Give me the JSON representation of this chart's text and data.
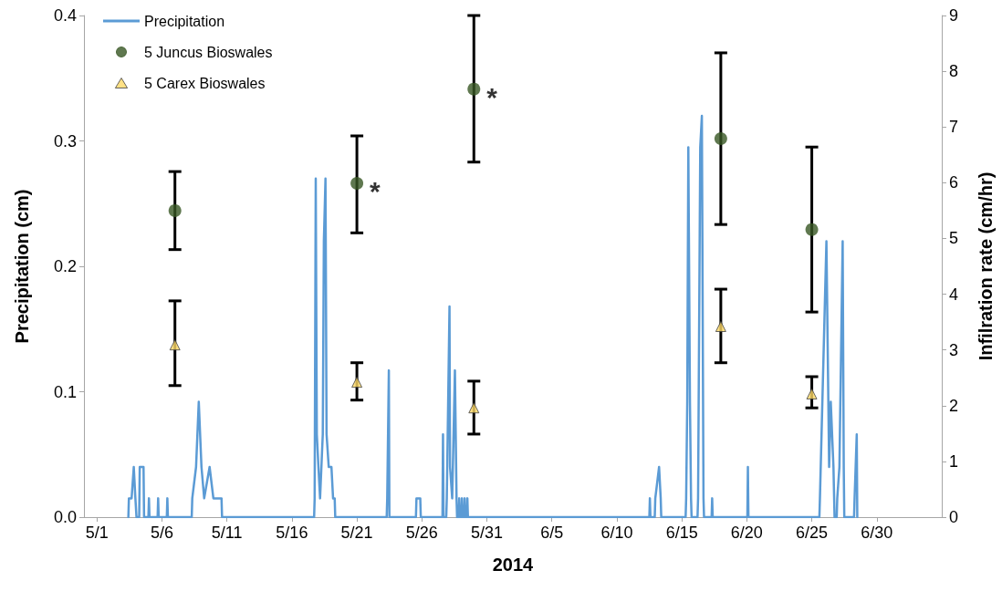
{
  "chart_data": {
    "type": "line",
    "xlabel": "2014",
    "ylabel": "Precipitation (cm)",
    "y2label": "Infilration rate (cm/hr)",
    "xlim": [
      "2014-04-30",
      "2014-07-05"
    ],
    "xticks": [
      {
        "value": "2014-05-01",
        "label": "5/1"
      },
      {
        "value": "2014-05-06",
        "label": "5/6"
      },
      {
        "value": "2014-05-11",
        "label": "5/11"
      },
      {
        "value": "2014-05-16",
        "label": "5/16"
      },
      {
        "value": "2014-05-21",
        "label": "5/21"
      },
      {
        "value": "2014-05-26",
        "label": "5/26"
      },
      {
        "value": "2014-05-31",
        "label": "5/31"
      },
      {
        "value": "2014-06-05",
        "label": "6/5"
      },
      {
        "value": "2014-06-10",
        "label": "6/10"
      },
      {
        "value": "2014-06-15",
        "label": "6/15"
      },
      {
        "value": "2014-06-20",
        "label": "6/20"
      },
      {
        "value": "2014-06-25",
        "label": "6/25"
      },
      {
        "value": "2014-06-30",
        "label": "6/30"
      }
    ],
    "ylim": [
      0,
      0.4
    ],
    "yticks": [
      {
        "value": 0,
        "label": "0.0"
      },
      0.1,
      0.2,
      0.3,
      0.4
    ],
    "y2lim": [
      0,
      9
    ],
    "y2ticks": [
      0,
      1,
      2,
      3,
      4,
      5,
      6,
      7,
      8,
      9
    ],
    "grid": false,
    "legend": "top left",
    "series": [
      {
        "name": "Precipitation",
        "color": "#5b9bd5",
        "marker": "none",
        "line_style": "solid",
        "x": [
          "2014-05-03T10:00",
          "2014-05-03T11:00",
          "2014-05-03T16:00",
          "2014-05-03T20:00",
          "2014-05-03T23:00",
          "2014-05-04T01:00",
          "2014-05-04T06:00",
          "2014-05-04T07:00",
          "2014-05-04T14:00",
          "2014-05-04T15:00",
          "2014-05-04T23:00",
          "2014-05-05T00:00",
          "2014-05-05T01:00",
          "2014-05-05T16:00",
          "2014-05-05T17:00",
          "2014-05-05T18:00",
          "2014-05-06T09:00",
          "2014-05-06T10:00",
          "2014-05-06T11:00",
          "2014-05-08T07:00",
          "2014-05-08T08:00",
          "2014-05-08T15:00",
          "2014-05-08T20:00",
          "2014-05-09T01:00",
          "2014-05-09T06:00",
          "2014-05-09T16:00",
          "2014-05-09T23:00",
          "2014-05-10T09:00",
          "2014-05-10T14:00",
          "2014-05-10T15:00",
          "2014-05-17T17:00",
          "2014-05-17T18:00",
          "2014-05-17T20:00",
          "2014-05-17T22:00",
          "2014-05-18T01:00",
          "2014-05-18T04:00",
          "2014-05-18T09:00",
          "2014-05-18T11:00",
          "2014-05-18T14:00",
          "2014-05-18T16:00",
          "2014-05-18T20:00",
          "2014-05-19T01:00",
          "2014-05-19T04:00",
          "2014-05-19T07:00",
          "2014-05-19T08:00",
          "2014-05-23T07:00",
          "2014-05-23T08:00",
          "2014-05-23T11:00",
          "2014-05-23T12:00",
          "2014-05-25T13:00",
          "2014-05-25T14:00",
          "2014-05-25T21:00",
          "2014-05-25T22:00",
          "2014-05-27T14:00",
          "2014-05-27T15:00",
          "2014-05-27T16:00",
          "2014-05-27T21:00",
          "2014-05-27T22:00",
          "2014-05-28T03:00",
          "2014-05-28T04:00",
          "2014-05-28T08:00",
          "2014-05-28T13:00",
          "2014-05-28T16:00",
          "2014-05-28T17:00",
          "2014-05-28T20:00",
          "2014-05-28T21:00",
          "2014-05-28T22:00",
          "2014-05-29T01:00",
          "2014-05-29T02:00",
          "2014-05-29T03:00",
          "2014-05-29T06:00",
          "2014-05-29T07:00",
          "2014-05-29T08:00",
          "2014-05-29T11:00",
          "2014-05-29T12:00",
          "2014-05-29T13:00",
          "2014-06-12T12:00",
          "2014-06-12T13:00",
          "2014-06-12T14:00",
          "2014-06-12T22:00",
          "2014-06-12T23:00",
          "2014-06-13T06:00",
          "2014-06-13T09:00",
          "2014-06-13T10:00",
          "2014-06-15T07:00",
          "2014-06-15T08:00",
          "2014-06-15T10:00",
          "2014-06-15T12:00",
          "2014-06-15T15:00",
          "2014-06-15T17:00",
          "2014-06-15T18:00",
          "2014-06-16T05:00",
          "2014-06-16T06:00",
          "2014-06-16T10:00",
          "2014-06-16T13:00",
          "2014-06-16T16:00",
          "2014-06-16T17:00",
          "2014-06-17T07:00",
          "2014-06-17T08:00",
          "2014-06-17T09:00",
          "2014-06-20T01:00",
          "2014-06-20T02:00",
          "2014-06-20T03:00",
          "2014-06-25T14:00",
          "2014-06-25T15:00",
          "2014-06-26T03:00",
          "2014-06-26T08:00",
          "2014-06-26T11:00",
          "2014-06-26T16:00",
          "2014-06-26T18:00",
          "2014-06-26T22:00",
          "2014-06-26T23:00",
          "2014-06-27T03:00",
          "2014-06-27T09:00",
          "2014-06-27T11:00",
          "2014-06-27T12:00",
          "2014-06-28T06:00",
          "2014-06-28T07:00",
          "2014-06-28T11:00",
          "2014-06-28T12:00"
        ],
        "values": [
          0,
          0.015,
          0.015,
          0.04,
          0.015,
          0,
          0,
          0.04,
          0.04,
          0,
          0,
          0.015,
          0,
          0,
          0.015,
          0,
          0,
          0.015,
          0,
          0,
          0.015,
          0.04,
          0.092,
          0.04,
          0.015,
          0.04,
          0.015,
          0.015,
          0.015,
          0,
          0,
          0.015,
          0.27,
          0.066,
          0.04,
          0.015,
          0.066,
          0.22,
          0.27,
          0.066,
          0.04,
          0.04,
          0.015,
          0.015,
          0,
          0,
          0.015,
          0.117,
          0,
          0,
          0.015,
          0.015,
          0,
          0,
          0.066,
          0,
          0,
          0.015,
          0.168,
          0.04,
          0.015,
          0.117,
          0.015,
          0,
          0,
          0.015,
          0,
          0,
          0.015,
          0,
          0,
          0.015,
          0,
          0,
          0.015,
          0,
          0,
          0.015,
          0,
          0,
          0.015,
          0.04,
          0.015,
          0,
          0,
          0.015,
          0.092,
          0.295,
          0.092,
          0.015,
          0,
          0,
          0.015,
          0.295,
          0.32,
          0.015,
          0,
          0,
          0.015,
          0,
          0,
          0.04,
          0,
          0,
          0.015,
          0.22,
          0.04,
          0.092,
          0.04,
          0,
          0,
          0.015,
          0.04,
          0.22,
          0.04,
          0,
          0,
          0.015,
          0.066,
          0
        ]
      },
      {
        "name": "5 Juncus Bioswales",
        "type": "scatter",
        "axis": "y2",
        "color": "#375623",
        "marker": "circle",
        "x": [
          "2014-05-07",
          "2014-05-21",
          "2014-05-30",
          "2014-06-18",
          "2014-06-25"
        ],
        "values": [
          5.5,
          5.99,
          7.68,
          6.79,
          5.16
        ],
        "errors": [
          [
            4.8,
            6.2
          ],
          [
            5.1,
            6.84
          ],
          [
            6.37,
            9.0
          ],
          [
            5.25,
            8.33
          ],
          [
            3.68,
            6.64
          ]
        ]
      },
      {
        "name": "5 Carex Bioswales",
        "type": "scatter",
        "axis": "y2",
        "color": "#ffd966",
        "marker": "triangle",
        "x": [
          "2014-05-07",
          "2014-05-21",
          "2014-05-30",
          "2014-06-18",
          "2014-06-25"
        ],
        "values": [
          3.09,
          2.42,
          1.96,
          3.42,
          2.21
        ],
        "errors": [
          [
            2.36,
            3.88
          ],
          [
            2.1,
            2.77
          ],
          [
            1.49,
            2.44
          ],
          [
            2.77,
            4.09
          ],
          [
            1.96,
            2.52
          ]
        ]
      }
    ],
    "annotations": [
      {
        "text": "*",
        "x": "2014-05-21",
        "y": 0.266
      },
      {
        "text": "*",
        "x": "2014-05-30",
        "y": 0.341
      }
    ]
  }
}
